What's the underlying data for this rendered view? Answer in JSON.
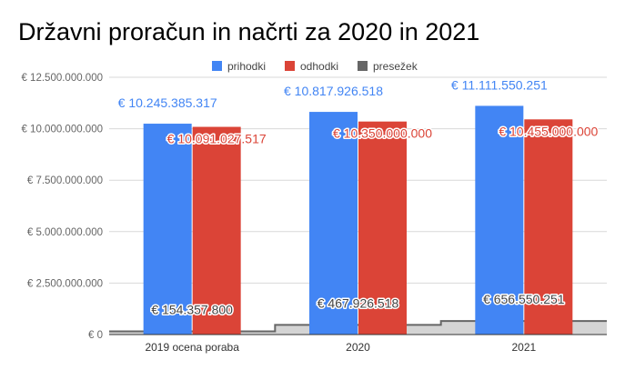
{
  "chart_data": {
    "type": "bar",
    "title": "Državni proračun in načrti za 2020 in 2021",
    "categories": [
      "2019 ocena poraba",
      "2020",
      "2021"
    ],
    "series": [
      {
        "name": "prihodki",
        "color": "#4285f4",
        "values": [
          10245385317,
          10817926518,
          11111550251
        ],
        "labels": [
          "€ 10.245.385.317",
          "€ 10.817.926.518",
          "€ 11.111.550.251"
        ]
      },
      {
        "name": "odhodki",
        "color": "#db4437",
        "values": [
          10091027517,
          10350000000,
          10455000000
        ],
        "labels": [
          "€ 10.091.027.517",
          "€ 10.350.000.000",
          "€ 10.455.000.000"
        ]
      },
      {
        "name": "presežek",
        "color": "#666666",
        "type": "stepped-area",
        "values": [
          154357800,
          467926518,
          656550251
        ],
        "labels": [
          "€ 154.357.800",
          "€ 467.926.518",
          "€ 656.550.251"
        ]
      }
    ],
    "yticks": [
      "€ 0",
      "€ 2.500.000.000",
      "€ 5.000.000.000",
      "€ 7.500.000.000",
      "€ 10.000.000.000",
      "€ 12.500.000.000"
    ],
    "ylim": [
      0,
      12500000000
    ],
    "legend_position": "top",
    "grid": true
  }
}
